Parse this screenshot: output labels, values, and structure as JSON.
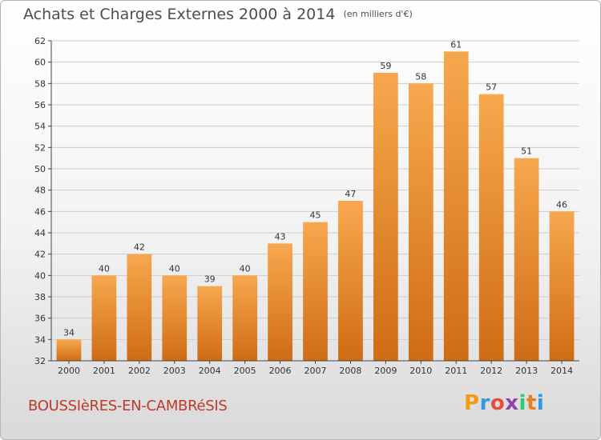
{
  "header": {
    "title": "Achats et Charges Externes 2000 à 2014",
    "unit": "(en milliers d'€)"
  },
  "footer": {
    "place": "BOUSSIèRES-EN-CAMBRéSIS",
    "logo": [
      "P",
      "r",
      "o",
      "x",
      "i",
      "t",
      "i"
    ],
    "logo_colors": [
      "#f39c12",
      "#3498db",
      "#e74c3c",
      "#8e44ad",
      "#2ecc71",
      "#e67e22",
      "#3498db"
    ]
  },
  "colors": {
    "bar_light": "#f7a84e",
    "bar_dark": "#cf6c16",
    "grid": "#cccccc",
    "axis": "#444444"
  },
  "chart_data": {
    "type": "bar",
    "title": "Achats et Charges Externes 2000 à 2014",
    "unit": "(en milliers d'€)",
    "categories": [
      "2000",
      "2001",
      "2002",
      "2003",
      "2004",
      "2005",
      "2006",
      "2007",
      "2008",
      "2009",
      "2010",
      "2011",
      "2012",
      "2013",
      "2014"
    ],
    "values": [
      34,
      40,
      42,
      40,
      39,
      40,
      43,
      45,
      47,
      59,
      58,
      61,
      57,
      51,
      46
    ],
    "ylim": [
      32,
      62
    ],
    "yticks": [
      32,
      34,
      36,
      38,
      40,
      42,
      44,
      46,
      48,
      50,
      52,
      54,
      56,
      58,
      60,
      62
    ],
    "grid": true,
    "data_labels": true
  }
}
